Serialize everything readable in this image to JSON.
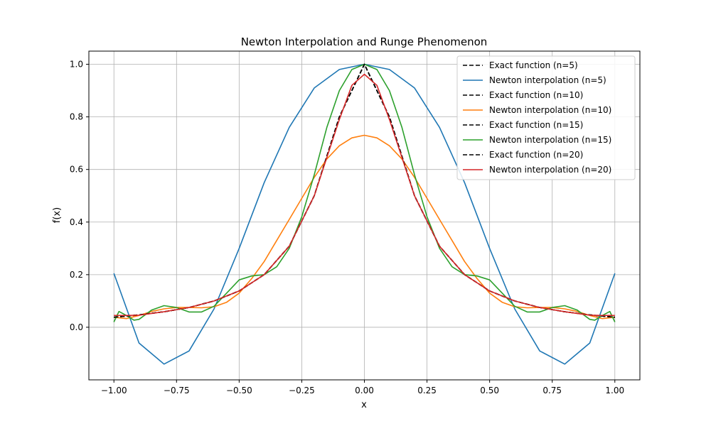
{
  "chart_data": {
    "type": "line",
    "title": "Newton Interpolation and Runge Phenomenon",
    "xlabel": "x",
    "ylabel": "f(x)",
    "xlim": [
      -1.1,
      1.1
    ],
    "ylim": [
      -0.2,
      1.05
    ],
    "xticks": [
      -1.0,
      -0.75,
      -0.5,
      -0.25,
      0.0,
      0.25,
      0.5,
      0.75,
      1.0
    ],
    "xtick_labels": [
      "−1.00",
      "−0.75",
      "−0.50",
      "−0.25",
      "0.00",
      "0.25",
      "0.50",
      "0.75",
      "1.00"
    ],
    "yticks": [
      0.0,
      0.2,
      0.4,
      0.6,
      0.8,
      1.0
    ],
    "ytick_labels": [
      "0.0",
      "0.2",
      "0.4",
      "0.6",
      "0.8",
      "1.0"
    ],
    "grid": true,
    "legend_position": "top-right",
    "series": [
      {
        "name": "Exact function (n=5)",
        "color": "#000000",
        "style": "dashed",
        "x": [
          -1.0,
          -0.9,
          -0.8,
          -0.7,
          -0.6,
          -0.5,
          -0.4,
          -0.3,
          -0.2,
          -0.1,
          0.0,
          0.1,
          0.2,
          0.3,
          0.4,
          0.5,
          0.6,
          0.7,
          0.8,
          0.9,
          1.0
        ],
        "y": [
          0.038,
          0.047,
          0.059,
          0.075,
          0.1,
          0.138,
          0.2,
          0.308,
          0.5,
          0.8,
          1.0,
          0.8,
          0.5,
          0.308,
          0.2,
          0.138,
          0.1,
          0.075,
          0.059,
          0.047,
          0.038
        ]
      },
      {
        "name": "Newton interpolation (n=5)",
        "color": "#1f77b4",
        "style": "solid",
        "x": [
          -1.0,
          -0.9,
          -0.8,
          -0.7,
          -0.6,
          -0.5,
          -0.4,
          -0.3,
          -0.2,
          -0.1,
          0.0,
          0.1,
          0.2,
          0.3,
          0.4,
          0.5,
          0.6,
          0.7,
          0.8,
          0.9,
          1.0
        ],
        "y": [
          0.205,
          -0.06,
          -0.14,
          -0.09,
          0.07,
          0.3,
          0.55,
          0.76,
          0.91,
          0.98,
          1.0,
          0.98,
          0.91,
          0.76,
          0.55,
          0.3,
          0.07,
          -0.09,
          -0.14,
          -0.06,
          0.205
        ]
      },
      {
        "name": "Exact function (n=10)",
        "color": "#000000",
        "style": "dashed",
        "x": [
          -1.0,
          -0.9,
          -0.8,
          -0.7,
          -0.6,
          -0.5,
          -0.4,
          -0.3,
          -0.2,
          -0.1,
          0.0,
          0.1,
          0.2,
          0.3,
          0.4,
          0.5,
          0.6,
          0.7,
          0.8,
          0.9,
          1.0
        ],
        "y": [
          0.038,
          0.047,
          0.059,
          0.075,
          0.1,
          0.138,
          0.2,
          0.308,
          0.5,
          0.8,
          1.0,
          0.8,
          0.5,
          0.308,
          0.2,
          0.138,
          0.1,
          0.075,
          0.059,
          0.047,
          0.038
        ]
      },
      {
        "name": "Newton interpolation (n=10)",
        "color": "#ff7f0e",
        "style": "solid",
        "x": [
          -1.0,
          -0.95,
          -0.9,
          -0.85,
          -0.8,
          -0.75,
          -0.7,
          -0.65,
          -0.6,
          -0.55,
          -0.5,
          -0.45,
          -0.4,
          -0.35,
          -0.3,
          -0.25,
          -0.2,
          -0.15,
          -0.1,
          -0.05,
          0.0,
          0.05,
          0.1,
          0.15,
          0.2,
          0.25,
          0.3,
          0.35,
          0.4,
          0.45,
          0.5,
          0.55,
          0.6,
          0.65,
          0.7,
          0.75,
          0.8,
          0.85,
          0.9,
          0.95,
          1.0
        ],
        "y": [
          0.038,
          0.033,
          0.045,
          0.06,
          0.07,
          0.075,
          0.075,
          0.074,
          0.078,
          0.095,
          0.13,
          0.185,
          0.25,
          0.33,
          0.41,
          0.49,
          0.57,
          0.64,
          0.69,
          0.72,
          0.73,
          0.72,
          0.69,
          0.64,
          0.57,
          0.49,
          0.41,
          0.33,
          0.25,
          0.185,
          0.13,
          0.095,
          0.078,
          0.074,
          0.075,
          0.075,
          0.07,
          0.06,
          0.045,
          0.033,
          0.038
        ]
      },
      {
        "name": "Exact function (n=15)",
        "color": "#000000",
        "style": "dashed",
        "x": [
          -1.0,
          -0.9,
          -0.8,
          -0.7,
          -0.6,
          -0.5,
          -0.4,
          -0.3,
          -0.2,
          -0.1,
          0.0,
          0.1,
          0.2,
          0.3,
          0.4,
          0.5,
          0.6,
          0.7,
          0.8,
          0.9,
          1.0
        ],
        "y": [
          0.038,
          0.047,
          0.059,
          0.075,
          0.1,
          0.138,
          0.2,
          0.308,
          0.5,
          0.8,
          1.0,
          0.8,
          0.5,
          0.308,
          0.2,
          0.138,
          0.1,
          0.075,
          0.059,
          0.047,
          0.038
        ]
      },
      {
        "name": "Newton interpolation (n=15)",
        "color": "#2ca02c",
        "style": "solid",
        "x": [
          -1.0,
          -0.98,
          -0.95,
          -0.92,
          -0.9,
          -0.85,
          -0.8,
          -0.75,
          -0.7,
          -0.65,
          -0.6,
          -0.55,
          -0.5,
          -0.45,
          -0.4,
          -0.35,
          -0.3,
          -0.25,
          -0.2,
          -0.15,
          -0.1,
          -0.05,
          0.0,
          0.05,
          0.1,
          0.15,
          0.2,
          0.25,
          0.3,
          0.35,
          0.4,
          0.45,
          0.5,
          0.55,
          0.6,
          0.65,
          0.7,
          0.75,
          0.8,
          0.85,
          0.9,
          0.92,
          0.95,
          0.98,
          1.0
        ],
        "y": [
          0.02,
          0.06,
          0.045,
          0.027,
          0.03,
          0.065,
          0.082,
          0.075,
          0.058,
          0.058,
          0.08,
          0.13,
          0.18,
          0.195,
          0.2,
          0.23,
          0.3,
          0.42,
          0.58,
          0.76,
          0.9,
          0.98,
          1.0,
          0.98,
          0.9,
          0.76,
          0.58,
          0.42,
          0.3,
          0.23,
          0.2,
          0.195,
          0.18,
          0.13,
          0.08,
          0.058,
          0.058,
          0.075,
          0.082,
          0.065,
          0.03,
          0.027,
          0.045,
          0.06,
          0.02
        ]
      },
      {
        "name": "Exact function (n=20)",
        "color": "#000000",
        "style": "dashed",
        "x": [
          -1.0,
          -0.9,
          -0.8,
          -0.7,
          -0.6,
          -0.5,
          -0.4,
          -0.3,
          -0.2,
          -0.1,
          0.0,
          0.1,
          0.2,
          0.3,
          0.4,
          0.5,
          0.6,
          0.7,
          0.8,
          0.9,
          1.0
        ],
        "y": [
          0.038,
          0.047,
          0.059,
          0.075,
          0.1,
          0.138,
          0.2,
          0.308,
          0.5,
          0.8,
          1.0,
          0.8,
          0.5,
          0.308,
          0.2,
          0.138,
          0.1,
          0.075,
          0.059,
          0.047,
          0.038
        ]
      },
      {
        "name": "Newton interpolation (n=20)",
        "color": "#d62728",
        "style": "solid",
        "x": [
          -1.0,
          -0.95,
          -0.9,
          -0.8,
          -0.7,
          -0.6,
          -0.5,
          -0.4,
          -0.3,
          -0.2,
          -0.1,
          -0.05,
          0.0,
          0.05,
          0.1,
          0.2,
          0.3,
          0.4,
          0.5,
          0.6,
          0.7,
          0.8,
          0.9,
          0.95,
          1.0
        ],
        "y": [
          0.045,
          0.045,
          0.046,
          0.059,
          0.075,
          0.1,
          0.138,
          0.2,
          0.308,
          0.5,
          0.79,
          0.92,
          0.962,
          0.92,
          0.79,
          0.5,
          0.308,
          0.2,
          0.138,
          0.1,
          0.075,
          0.059,
          0.046,
          0.045,
          0.045
        ]
      }
    ]
  }
}
